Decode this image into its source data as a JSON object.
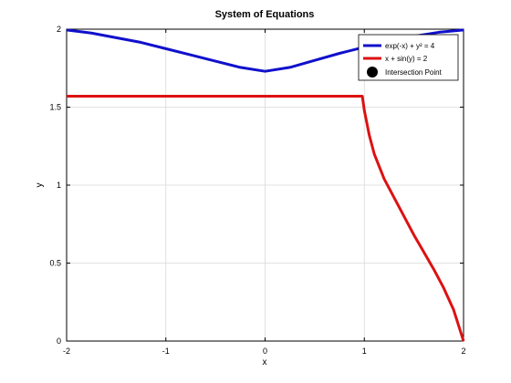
{
  "chart_data": {
    "type": "line",
    "title": "System of Equations",
    "xlabel": "x",
    "ylabel": "y",
    "xlim": [
      -2,
      2
    ],
    "ylim": [
      0,
      2
    ],
    "xticks": [
      "-2",
      "-1",
      "0",
      "1",
      "2"
    ],
    "yticks": [
      "0",
      "0.5",
      "1",
      "1.5",
      "2"
    ],
    "grid": true,
    "legend_position": "top-right",
    "series": [
      {
        "name": "exp(-x) + y² = 4",
        "color": "#1010cc",
        "x": [
          -2,
          -1.75,
          -1.5,
          -1.25,
          -1,
          -0.75,
          -0.5,
          -0.25,
          0,
          0.25,
          0.5,
          0.75,
          1,
          1.25,
          1.5,
          1.75,
          2
        ],
        "y": [
          1.995,
          1.975,
          1.945,
          1.915,
          1.875,
          1.835,
          1.795,
          1.755,
          1.73,
          1.755,
          1.8,
          1.845,
          1.885,
          1.925,
          1.955,
          1.98,
          1.995
        ]
      },
      {
        "name": "x + sin(y) = 2",
        "color": "#dd1111",
        "x": [
          -2,
          -1,
          0,
          0.9,
          0.98,
          1.0,
          1.05,
          1.1,
          1.2,
          1.3,
          1.4,
          1.5,
          1.6,
          1.7,
          1.8,
          1.9,
          2.0
        ],
        "y": [
          1.57,
          1.57,
          1.57,
          1.57,
          1.57,
          1.48,
          1.32,
          1.2,
          1.04,
          0.92,
          0.8,
          0.68,
          0.57,
          0.46,
          0.34,
          0.2,
          0.0
        ]
      }
    ],
    "legend": [
      "exp(-x) + y² = 4",
      "x + sin(y) = 2",
      "Intersection Point"
    ]
  }
}
